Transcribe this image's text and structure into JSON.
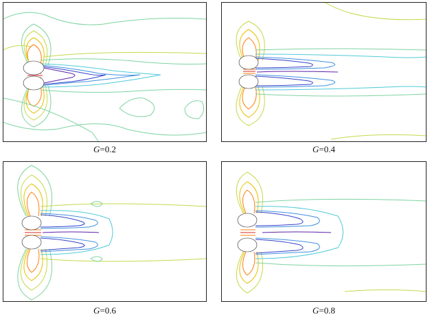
{
  "panels": [
    {
      "id": "p1",
      "var": "G",
      "value": "=0.2"
    },
    {
      "id": "p2",
      "var": "G",
      "value": "=0.4"
    },
    {
      "id": "p3",
      "var": "G",
      "value": "=0.6"
    },
    {
      "id": "p4",
      "var": "G",
      "value": "=0.8"
    }
  ],
  "colors": {
    "frame": "#222222",
    "cylinder_fill": "#ffffff",
    "contour_palette": [
      "#d62728",
      "#ff7f0e",
      "#e8c000",
      "#c5d94a",
      "#7ed3a0",
      "#4fc9d9",
      "#3f8fe0",
      "#3340c8",
      "#5b1fa8"
    ]
  }
}
